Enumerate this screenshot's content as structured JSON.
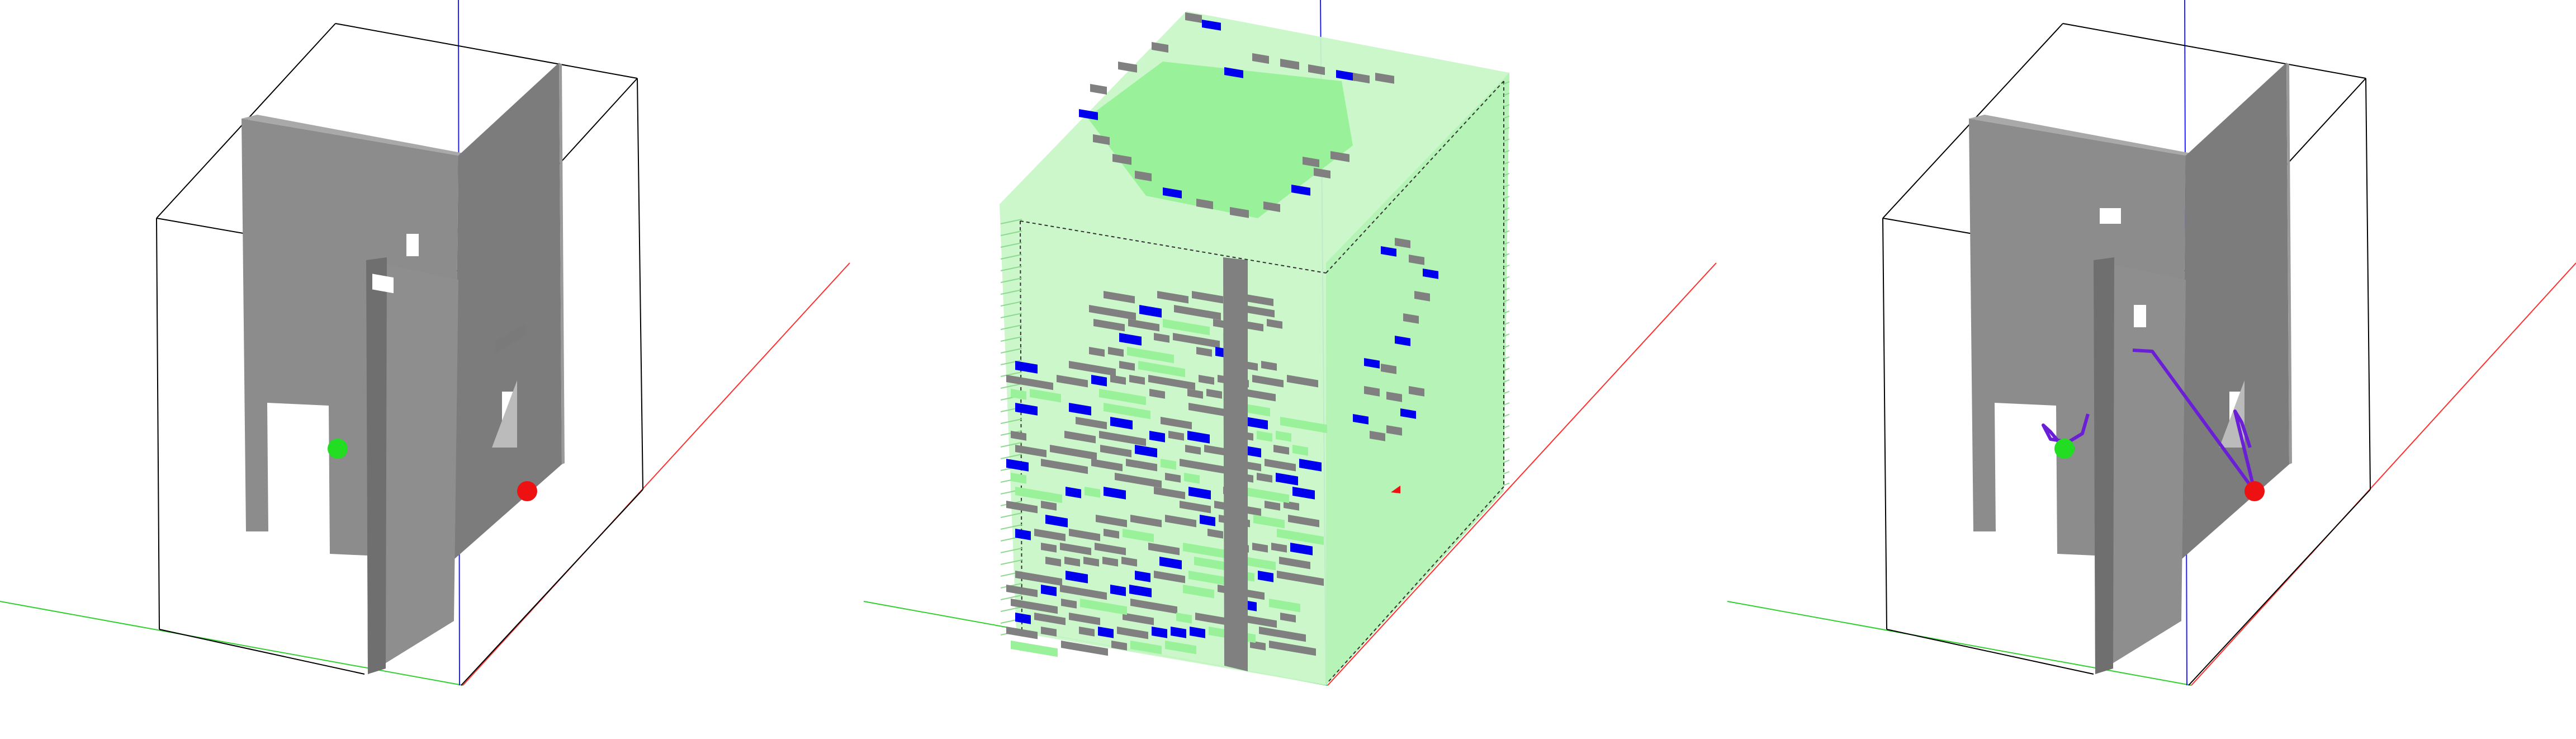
{
  "panels": [
    {
      "id": "building-view",
      "elements": [
        "bounding-box",
        "walls",
        "start-marker",
        "goal-marker",
        "axes"
      ]
    },
    {
      "id": "voxel-slice-view",
      "elements": [
        "slice-stack",
        "occupied-voxels",
        "frontier-voxels",
        "free-voxels",
        "axes"
      ]
    },
    {
      "id": "path-view",
      "elements": [
        "bounding-box",
        "walls",
        "start-marker",
        "goal-marker",
        "planned-path",
        "axes"
      ]
    }
  ],
  "colors": {
    "background": "#ffffff",
    "wall": "#8c8c8c",
    "wall_dark": "#6f6f6f",
    "wall_light": "#a9a9a9",
    "bbox_line": "#000000",
    "axis_x": "#ff3030",
    "axis_y": "#30d030",
    "axis_z": "#2020ff",
    "start_marker": "#22dd22",
    "goal_marker": "#ee1111",
    "voxel_free": "#c8f7c8",
    "voxel_free_dense": "#99f299",
    "voxel_occupied": "#808080",
    "voxel_frontier": "#0000ee",
    "path": "#6a1fd6"
  }
}
